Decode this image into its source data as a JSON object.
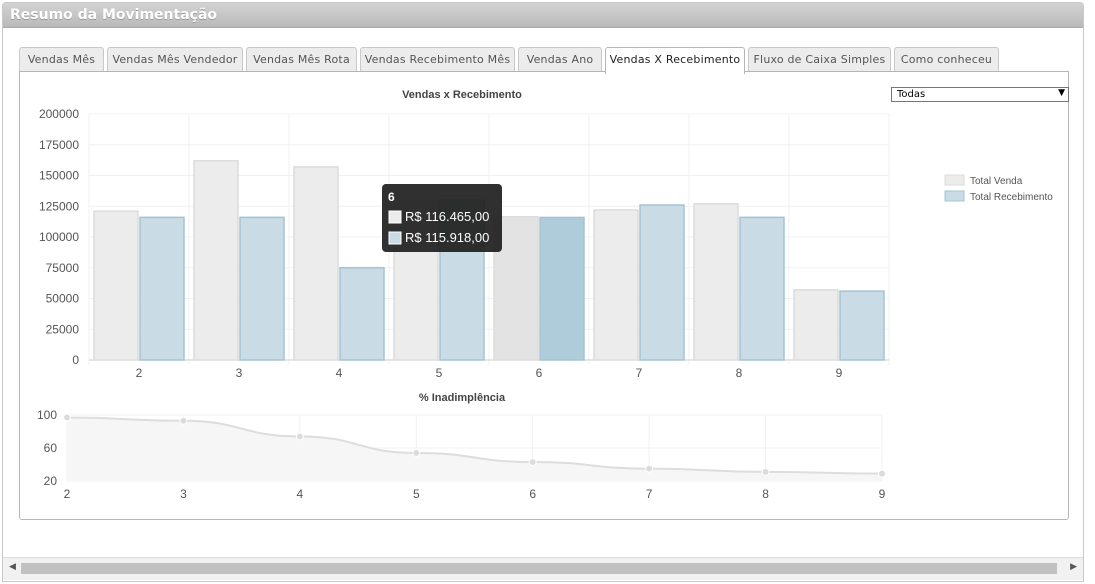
{
  "window": {
    "title": "Resumo da Movimentação"
  },
  "tabs": [
    {
      "label": "Vendas Mês",
      "active": false
    },
    {
      "label": "Vendas Mês Vendedor",
      "active": false
    },
    {
      "label": "Vendas Mês Rota",
      "active": false
    },
    {
      "label": "Vendas Recebimento Mês",
      "active": false
    },
    {
      "label": "Vendas Ano",
      "active": false
    },
    {
      "label": "Vendas X Recebimento",
      "active": true
    },
    {
      "label": "Fluxo de Caixa Simples",
      "active": false
    },
    {
      "label": "Como conheceu",
      "active": false
    }
  ],
  "filter": {
    "selected": "Todas"
  },
  "chart_data": [
    {
      "type": "bar",
      "title": "Vendas x Recebimento",
      "categories": [
        "2",
        "3",
        "4",
        "5",
        "6",
        "7",
        "8",
        "9"
      ],
      "series": [
        {
          "name": "Total Venda",
          "color": "#ececec",
          "border": "#dcdcdc",
          "values": [
            121000,
            162000,
            157000,
            130000,
            116465,
            122000,
            127000,
            57000
          ]
        },
        {
          "name": "Total Recebimento",
          "color": "#c9dce6",
          "border": "#a5c3d3",
          "values": [
            116000,
            116000,
            75000,
            130000,
            115918,
            126000,
            116000,
            56000
          ]
        }
      ],
      "ylim": [
        0,
        200000
      ],
      "yticks": [
        0,
        25000,
        50000,
        75000,
        100000,
        125000,
        150000,
        175000,
        200000
      ],
      "legend": "right",
      "grid": true,
      "tooltip": {
        "category": "6",
        "lines": [
          "R$ 116.465,00",
          "R$ 115.918,00"
        ]
      }
    },
    {
      "type": "line",
      "title": "% Inadimplência",
      "x": [
        "2",
        "3",
        "4",
        "5",
        "6",
        "7",
        "8",
        "9"
      ],
      "series": [
        {
          "name": "",
          "color": "#dddddd",
          "values": [
            97,
            93,
            74,
            54,
            43,
            35,
            31,
            29
          ]
        }
      ],
      "ylim": [
        20,
        100
      ],
      "yticks": [
        20,
        60,
        100
      ],
      "grid": true,
      "filled": true
    }
  ]
}
